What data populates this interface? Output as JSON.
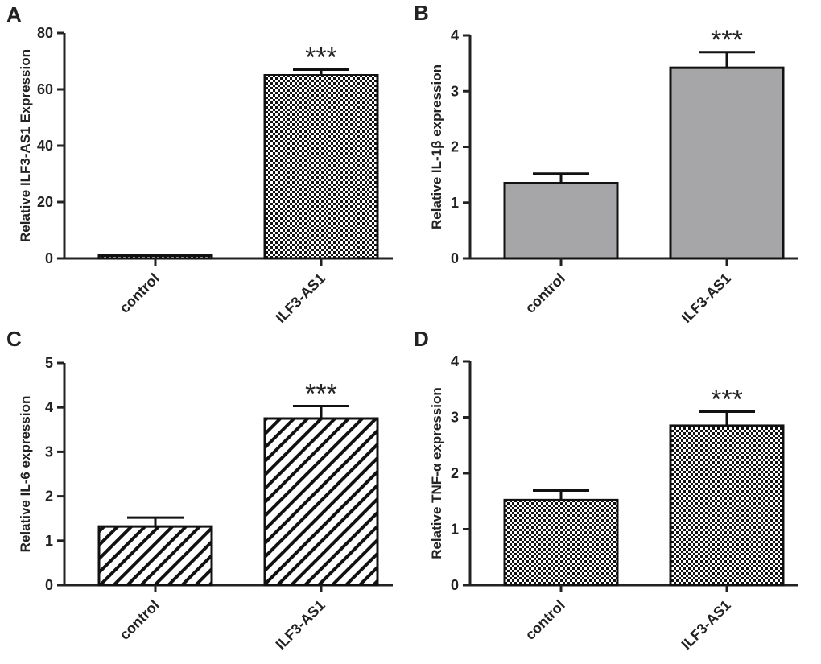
{
  "colors": {
    "axis": "#222222",
    "gray_bar": "#a6a6a8",
    "bar_stroke": "#111111"
  },
  "chart_data": [
    {
      "panel": "A",
      "type": "bar",
      "pattern": "checker",
      "categories": [
        "control",
        "ILF3-AS1"
      ],
      "values": [
        1.0,
        65
      ],
      "errors": [
        0.3,
        2.0
      ],
      "significance": [
        "",
        "***"
      ],
      "ylabel": "Relative ILF3-AS1 Expression",
      "ylim": [
        0,
        80
      ],
      "yticks": [
        "0",
        "20",
        "40",
        "60",
        "80"
      ]
    },
    {
      "panel": "B",
      "type": "bar",
      "pattern": "gray",
      "categories": [
        "control",
        "ILF3-AS1"
      ],
      "values": [
        1.35,
        3.42
      ],
      "errors": [
        0.17,
        0.28
      ],
      "significance": [
        "",
        "***"
      ],
      "ylabel": "Relative IL-1β expression",
      "ylim": [
        0,
        4
      ],
      "yticks": [
        "0",
        "1",
        "2",
        "3",
        "4"
      ]
    },
    {
      "panel": "C",
      "type": "bar",
      "pattern": "stripes",
      "categories": [
        "control",
        "ILF3-AS1"
      ],
      "values": [
        1.32,
        3.75
      ],
      "errors": [
        0.2,
        0.28
      ],
      "significance": [
        "",
        "***"
      ],
      "ylabel": "Relative IL-6 expression",
      "ylim": [
        0,
        5
      ],
      "yticks": [
        "0",
        "1",
        "2",
        "3",
        "4",
        "5"
      ]
    },
    {
      "panel": "D",
      "type": "bar",
      "pattern": "checker",
      "categories": [
        "control",
        "ILF3-AS1"
      ],
      "values": [
        1.52,
        2.85
      ],
      "errors": [
        0.17,
        0.25
      ],
      "significance": [
        "",
        "***"
      ],
      "ylabel": "Relative TNF-α expression",
      "ylim": [
        0,
        4
      ],
      "yticks": [
        "0",
        "1",
        "2",
        "3",
        "4"
      ]
    }
  ]
}
